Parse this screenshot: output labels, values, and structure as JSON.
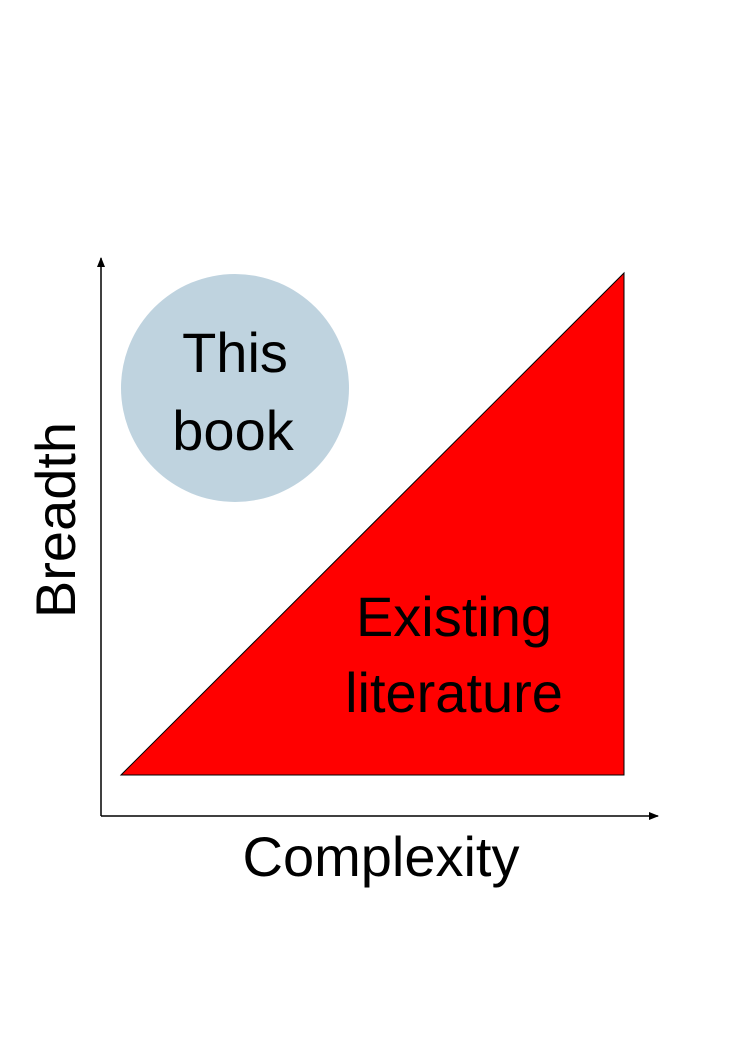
{
  "diagram": {
    "y_axis_label": "Breadth",
    "x_axis_label": "Complexity",
    "circle": {
      "line1": "This",
      "line2": "book",
      "fill": "#bfd3df"
    },
    "triangle": {
      "line1": "Existing",
      "line2": "literature",
      "fill": "#ff0000"
    },
    "axis_color": "#000000"
  }
}
